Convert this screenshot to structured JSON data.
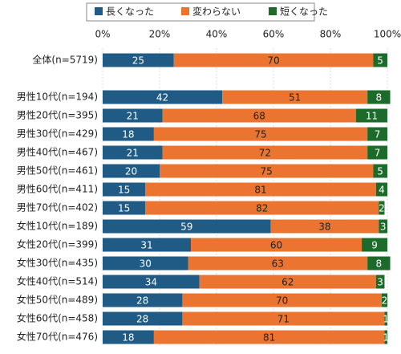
{
  "chart_data": {
    "type": "stacked-bar-horizontal",
    "categories": [
      "全体(n=5719)",
      null,
      "男性10代(n=194)",
      "男性20代(n=395)",
      "男性30代(n=429)",
      "男性40代(n=467)",
      "男性50代(n=461)",
      "男性60代(n=411)",
      "男性70代(n=402)",
      "女性10代(n=189)",
      "女性20代(n=399)",
      "女性30代(n=435)",
      "女性40代(n=514)",
      "女性50代(n=489)",
      "女性60代(n=458)",
      "女性70代(n=476)"
    ],
    "series": [
      {
        "name": "長くなった",
        "color": "#1f5b85",
        "values": [
          25,
          null,
          42,
          21,
          18,
          21,
          20,
          15,
          15,
          59,
          31,
          30,
          34,
          28,
          28,
          18
        ]
      },
      {
        "name": "変わらない",
        "color": "#eb7530",
        "values": [
          70,
          null,
          51,
          68,
          75,
          72,
          75,
          81,
          82,
          38,
          60,
          63,
          62,
          70,
          71,
          81
        ]
      },
      {
        "name": "短くなった",
        "color": "#1d6b2b",
        "values": [
          5,
          null,
          8,
          11,
          7,
          7,
          5,
          4,
          2,
          3,
          9,
          8,
          3,
          2,
          1,
          1
        ]
      }
    ],
    "xlim": [
      0,
      100
    ],
    "xticks": [
      {
        "value": 0,
        "label": "0%"
      },
      {
        "value": 20,
        "label": "20%"
      },
      {
        "value": 40,
        "label": "40%"
      },
      {
        "value": 60,
        "label": "60%"
      },
      {
        "value": 80,
        "label": "80%"
      },
      {
        "value": 100,
        "label": "100%"
      }
    ],
    "grid": true,
    "legend": "top"
  }
}
